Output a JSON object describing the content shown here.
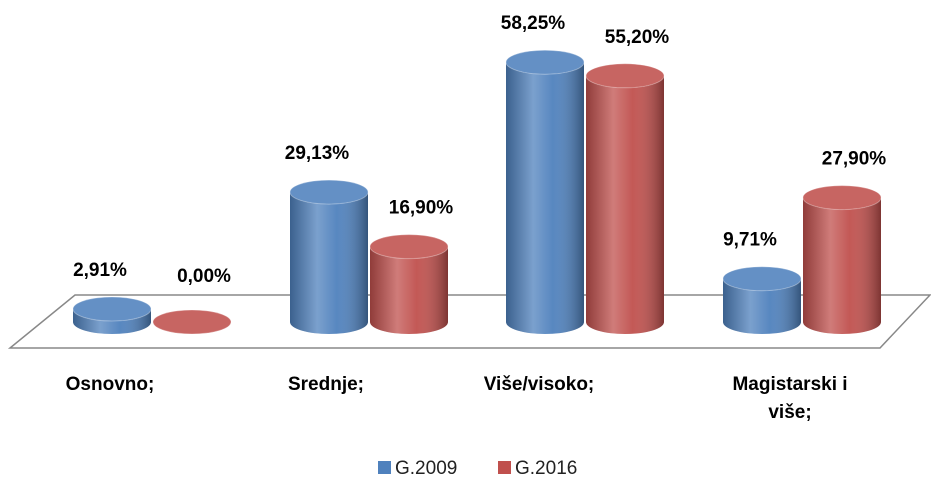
{
  "chart_data": {
    "type": "bar3d",
    "categories": [
      "Osnovno;",
      "Srednje;",
      "Više/visoko;",
      "Magistarski i više;"
    ],
    "series": [
      {
        "name": "G.2009",
        "color": "#4f81bd",
        "values": [
          2.91,
          29.13,
          58.25,
          9.71
        ],
        "value_labels": [
          "2,91%",
          "29,13%",
          "58,25%",
          "9,71%"
        ]
      },
      {
        "name": "G.2016",
        "color": "#c0504d",
        "values": [
          0,
          16.9,
          55.2,
          27.9
        ],
        "value_labels": [
          "0,00%",
          "16,90%",
          "55,20%",
          "27,90%"
        ]
      }
    ],
    "legend": "bottom"
  }
}
